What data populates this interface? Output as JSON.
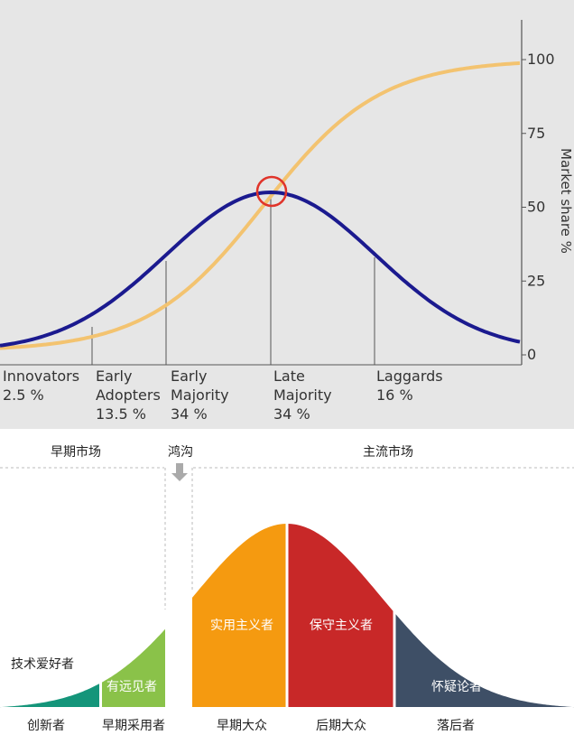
{
  "chart_data": [
    {
      "type": "line",
      "xlabel": "",
      "ylabel": "Market share %",
      "ylim": [
        0,
        100
      ],
      "yticks": [
        0,
        25,
        50,
        75,
        100
      ],
      "grid": false,
      "series": [
        {
          "color": "#1b1a8f",
          "shape": "bell curve (adoption rate)"
        },
        {
          "color": "#f3c370",
          "shape": "S-curve (cumulative market share)"
        }
      ],
      "segments": [
        {
          "name": "Innovators",
          "percent": "2.5 %"
        },
        {
          "name": "Early Adopters",
          "percent": "13.5 %"
        },
        {
          "name": "Early Majority",
          "percent": "34 %"
        },
        {
          "name": "Late Majority",
          "percent": "34 %"
        },
        {
          "name": "Laggards",
          "percent": "16 %"
        }
      ],
      "highlight": {
        "type": "circle",
        "color": "#e0342a",
        "at": "intersection of curves at peak"
      }
    },
    {
      "type": "area",
      "top_labels": {
        "early_market": "早期市场",
        "chasm": "鸿沟",
        "mainstream_market": "主流市场"
      },
      "segments": [
        {
          "inner_label": "技术爱好者",
          "bottom_label": "创新者",
          "color": "#14957a"
        },
        {
          "inner_label": "有远见者",
          "bottom_label": "早期采用者",
          "color": "#8ac249"
        },
        {
          "inner_label": "实用主义者",
          "bottom_label": "早期大众",
          "color": "#f59a10"
        },
        {
          "inner_label": "保守主义者",
          "bottom_label": "后期大众",
          "color": "#c82828"
        },
        {
          "inner_label": "怀疑论者",
          "bottom_label": "落后者",
          "color": "#3e4f66"
        }
      ]
    }
  ]
}
